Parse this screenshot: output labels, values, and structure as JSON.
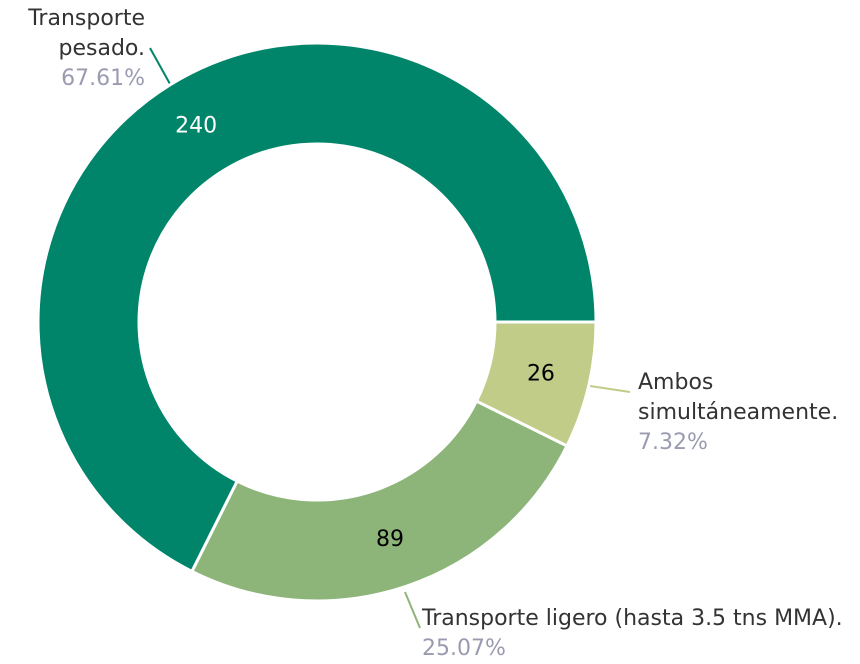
{
  "chart_data": {
    "type": "donut",
    "categories": [
      "Transporte pesado.",
      "Transporte ligero (hasta 3.5 tns MMA).",
      "Ambos simultáneamente."
    ],
    "values": [
      240,
      89,
      26
    ],
    "percent_labels": [
      "67.61%",
      "25.07%",
      "7.32%"
    ],
    "colors": [
      "#00856a",
      "#8db57a",
      "#c0cc88"
    ]
  }
}
